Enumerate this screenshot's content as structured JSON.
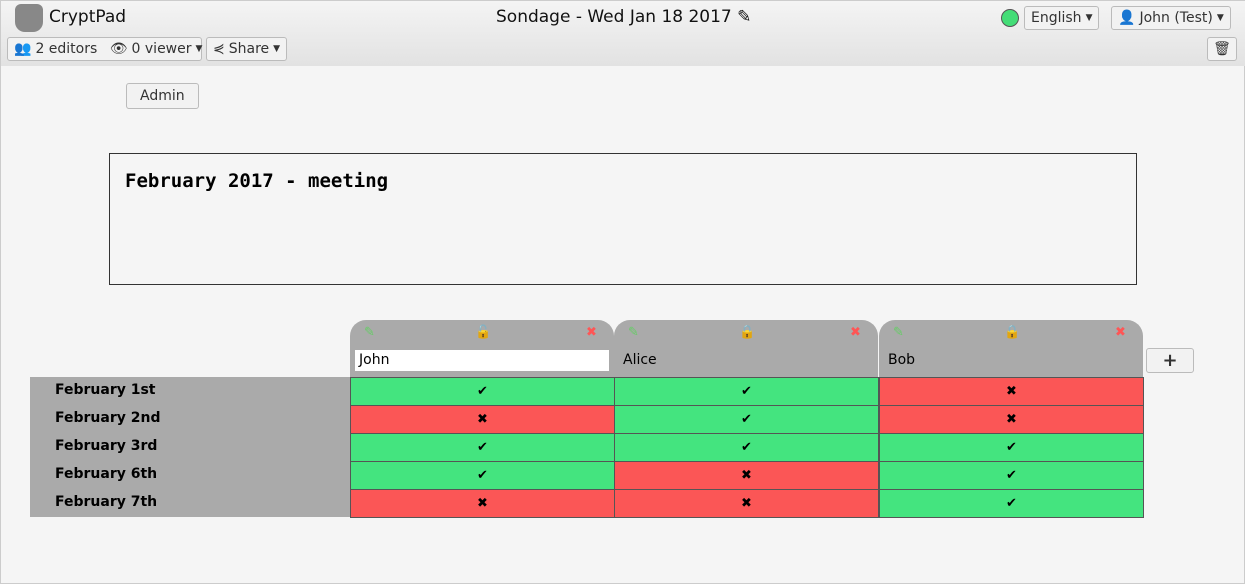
{
  "app": {
    "name": "CryptPad",
    "title": "Sondage - Wed Jan 18 2017"
  },
  "toolbar": {
    "editors": "2 editors",
    "viewers": "0 viewer",
    "share": "Share",
    "language": "English",
    "user": "John (Test)",
    "status_color": "#44dd77"
  },
  "admin_label": "Admin",
  "description": "February 2017 - meeting",
  "columns": [
    {
      "name": "John",
      "locked": false,
      "editing": true
    },
    {
      "name": "Alice",
      "locked": true
    },
    {
      "name": "Bob",
      "locked": true
    }
  ],
  "rows": [
    "February 1st",
    "February 2nd",
    "February 3rd",
    "February 6th",
    "February 7th"
  ],
  "votes": [
    [
      true,
      true,
      false
    ],
    [
      false,
      true,
      false
    ],
    [
      true,
      true,
      true
    ],
    [
      true,
      false,
      true
    ],
    [
      false,
      false,
      true
    ]
  ],
  "colors": {
    "yes": "#44e47f",
    "no": "#fb5656"
  },
  "symbols": {
    "yes": "✔",
    "no": "✖",
    "add": "+"
  }
}
